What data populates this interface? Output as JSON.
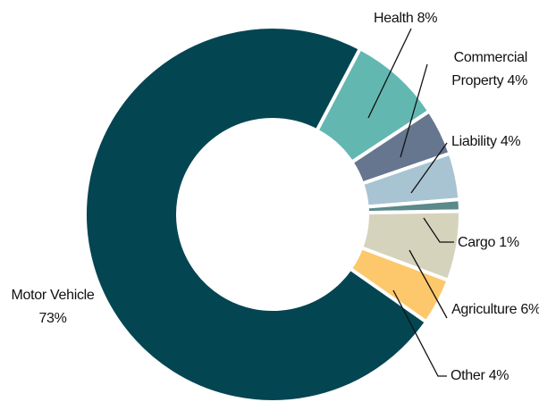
{
  "chart_data": {
    "type": "donut",
    "categories": [
      "Health",
      "Commercial Property",
      "Liability",
      "Cargo",
      "Agriculture",
      "Other",
      "Motor Vehicle"
    ],
    "values": [
      8,
      4,
      4,
      1,
      6,
      4,
      73
    ],
    "value_labels": [
      "8%",
      "4%",
      "4%",
      "1%",
      "6%",
      "4%",
      "73%"
    ],
    "colors": [
      "#62b8b0",
      "#66768f",
      "#a8c4d2",
      "#5a8a8a",
      "#d6d3bd",
      "#fdc86b",
      "#044552"
    ]
  }
}
